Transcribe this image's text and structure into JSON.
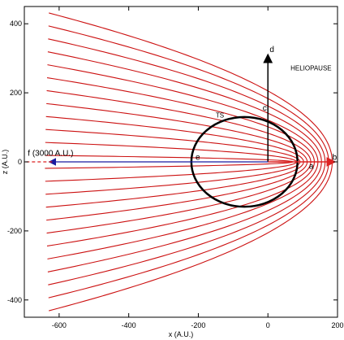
{
  "chart_data": {
    "type": "line",
    "xlabel": "x (A.U.)",
    "ylabel": "z (A.U.)",
    "xlim": [
      -700,
      200
    ],
    "ylim": [
      -450,
      450
    ],
    "x_ticks": [
      -600,
      -400,
      -200,
      0,
      200
    ],
    "y_ticks": [
      -400,
      -200,
      0,
      200,
      400
    ],
    "x_tick_labels": [
      "-600",
      "-400",
      "-200",
      "0",
      "200"
    ],
    "y_tick_labels": [
      "-400",
      "-200",
      "0",
      "200",
      "400"
    ],
    "grid": false,
    "legend": "none",
    "streamline_color": "#cc1111",
    "shock_color": "#000000",
    "arrow_color_blue": "#1a1aa0",
    "arrow_color_red": "#dd2222",
    "series": [
      {
        "values": [
          {
            "sx": 0.0,
            "sz": 0.0
          },
          {
            "sx": 1,
            "sz": 0
          }
        ]
      }
    ],
    "streamlines": {
      "count": 24,
      "y_extremes": [
        -450,
        450
      ],
      "apex_x": 190,
      "parabola_width_at_left": 450
    },
    "termination_shock": {
      "center": [
        -35,
        0
      ],
      "radius_x_nose": 120,
      "radius_x_tail": 185,
      "radius_z": 130
    },
    "annotations": [
      {
        "id": "heliopause",
        "text": "HELIOPAUSE",
        "x": 65,
        "z": 265
      },
      {
        "id": "ts",
        "text": "TS",
        "x": -150,
        "z": 128
      },
      {
        "id": "a",
        "text": "a",
        "x": 118,
        "z": -20
      },
      {
        "id": "b",
        "text": "b",
        "x": 185,
        "z": 6
      },
      {
        "id": "c",
        "text": "c",
        "x": -15,
        "z": 148
      },
      {
        "id": "d",
        "text": "d",
        "x": 5,
        "z": 318
      },
      {
        "id": "e",
        "text": "e",
        "x": -208,
        "z": 6
      },
      {
        "id": "f",
        "text": "f (3000 A.U.)",
        "x": -690,
        "z": 18
      }
    ],
    "arrows": [
      {
        "id": "arrow-d",
        "from": [
          0,
          0
        ],
        "to": [
          0,
          300
        ],
        "color": "black"
      },
      {
        "id": "arrow-b",
        "from": [
          0,
          0
        ],
        "to": [
          182,
          0
        ],
        "color": "red"
      },
      {
        "id": "arrow-f",
        "from": [
          0,
          0
        ],
        "to": [
          -620,
          0
        ],
        "color": "blue"
      }
    ]
  }
}
